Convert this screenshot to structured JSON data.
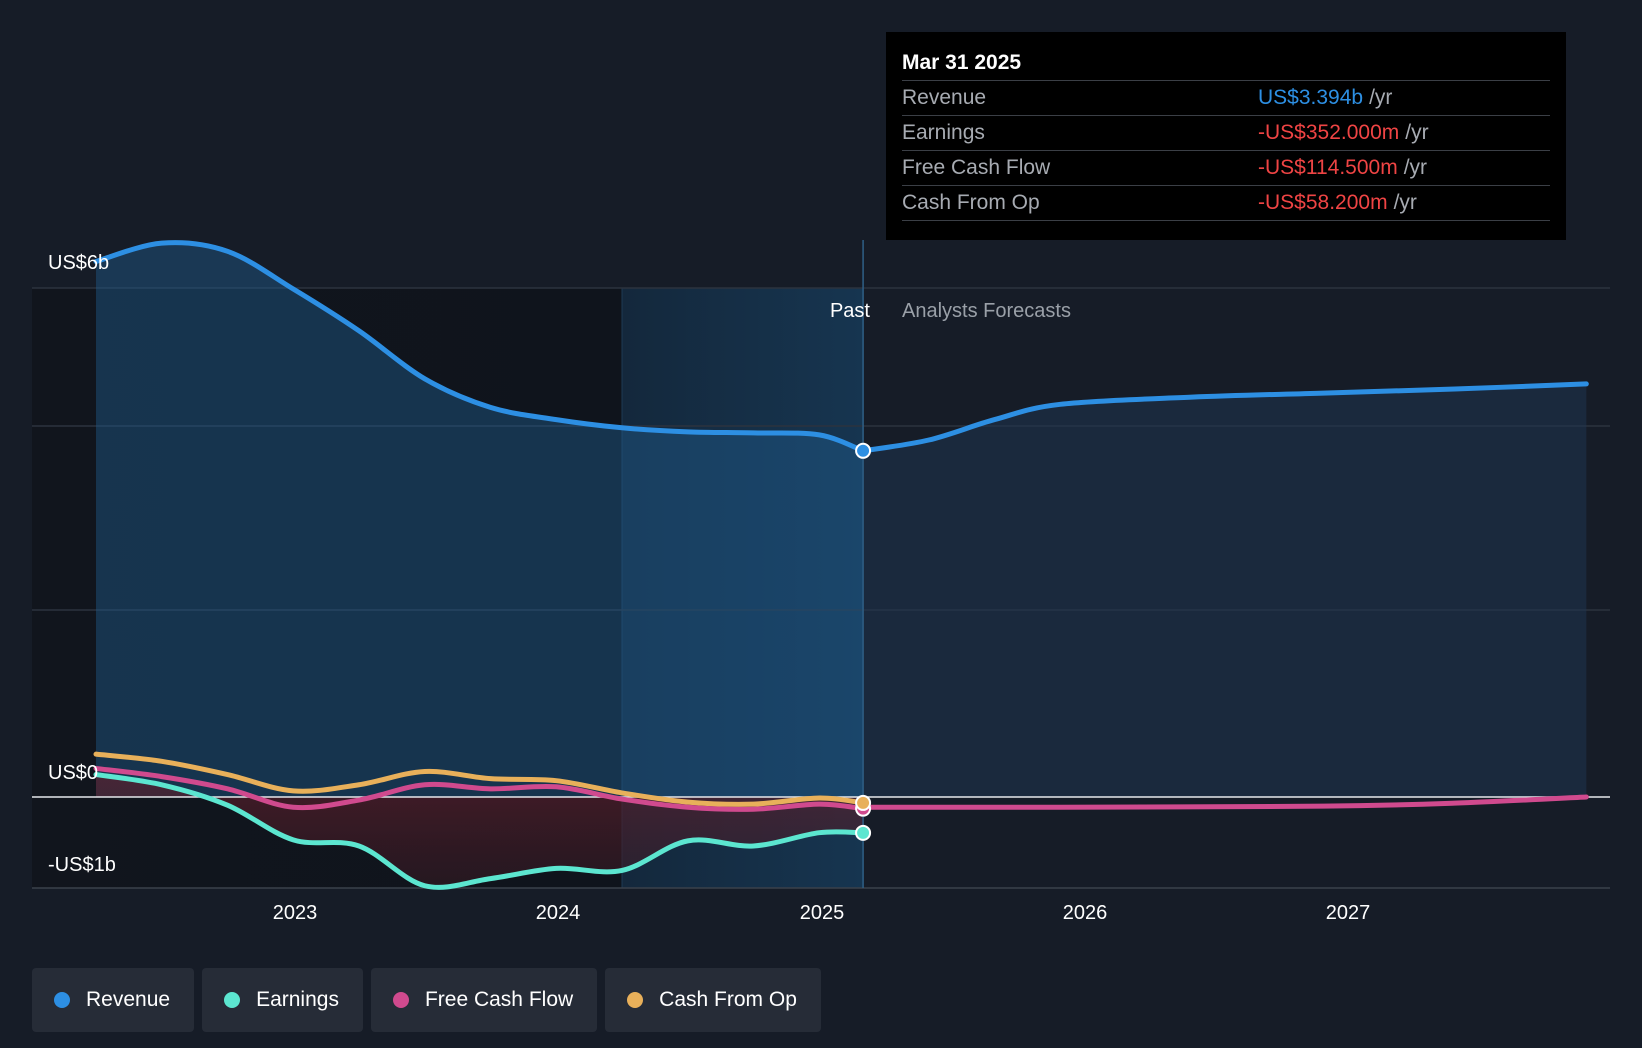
{
  "chart_data": {
    "type": "line",
    "y_axis_labels": [
      "US$6b",
      "US$0",
      "-US$1b"
    ],
    "ylim": [
      -1.0,
      5.5
    ],
    "x_ticks": [
      "2023",
      "2024",
      "2025",
      "2026",
      "2027"
    ],
    "xlim": [
      "2022-04",
      "2027-12"
    ],
    "past_label": "Past",
    "forecast_label": "Analysts Forecasts",
    "series": [
      {
        "name": "Revenue",
        "color": "#2d8fe3",
        "x": [
          "2022-04",
          "2022-07",
          "2022-10",
          "2023-01",
          "2023-04",
          "2023-07",
          "2023-10",
          "2024-01",
          "2024-04",
          "2024-07",
          "2024-10",
          "2025-01",
          "2025-03"
        ],
        "values": [
          5.25,
          5.43,
          5.35,
          4.98,
          4.57,
          4.1,
          3.82,
          3.7,
          3.62,
          3.58,
          3.57,
          3.55,
          3.394
        ]
      },
      {
        "name": "Revenue (forecast)",
        "color": "#2d8fe3",
        "x": [
          "2025-03",
          "2025-06",
          "2025-09",
          "2025-12",
          "2026-06",
          "2026-12",
          "2027-06",
          "2027-12"
        ],
        "values": [
          3.394,
          3.5,
          3.7,
          3.85,
          3.92,
          3.96,
          4.0,
          4.05
        ]
      },
      {
        "name": "Earnings",
        "color": "#5ce6d0",
        "x": [
          "2022-04",
          "2022-07",
          "2022-10",
          "2023-01",
          "2023-04",
          "2023-07",
          "2023-10",
          "2024-01",
          "2024-04",
          "2024-07",
          "2024-10",
          "2025-01",
          "2025-03"
        ],
        "values": [
          0.22,
          0.12,
          -0.08,
          -0.42,
          -0.48,
          -0.87,
          -0.8,
          -0.7,
          -0.72,
          -0.43,
          -0.48,
          -0.35,
          -0.352
        ]
      },
      {
        "name": "Free Cash Flow",
        "color": "#d04a8e",
        "x": [
          "2022-04",
          "2022-07",
          "2022-10",
          "2023-01",
          "2023-04",
          "2023-07",
          "2023-10",
          "2024-01",
          "2024-04",
          "2024-07",
          "2024-10",
          "2025-01",
          "2025-03"
        ],
        "values": [
          0.28,
          0.2,
          0.08,
          -0.1,
          -0.03,
          0.12,
          0.08,
          0.1,
          -0.02,
          -0.1,
          -0.12,
          -0.07,
          -0.1145
        ]
      },
      {
        "name": "Free Cash Flow (forecast)",
        "color": "#d04a8e",
        "x": [
          "2025-03",
          "2025-12",
          "2026-12",
          "2027-06",
          "2027-12"
        ],
        "values": [
          -0.1,
          -0.1,
          -0.09,
          -0.06,
          0.0
        ]
      },
      {
        "name": "Cash From Op",
        "color": "#e8b05a",
        "x": [
          "2022-04",
          "2022-07",
          "2022-10",
          "2023-01",
          "2023-04",
          "2023-07",
          "2023-10",
          "2024-01",
          "2024-04",
          "2024-07",
          "2024-10",
          "2025-01",
          "2025-03"
        ],
        "values": [
          0.42,
          0.35,
          0.22,
          0.06,
          0.12,
          0.25,
          0.18,
          0.16,
          0.04,
          -0.05,
          -0.07,
          -0.01,
          -0.0582
        ]
      }
    ],
    "highlight_date": "2025-03",
    "shaded_band": [
      "2024-04",
      "2025-03"
    ]
  },
  "tooltip": {
    "date": "Mar 31 2025",
    "rows": [
      {
        "name": "Revenue",
        "value": "US$3.394b",
        "unit": "/yr",
        "color": "#2d8fe3"
      },
      {
        "name": "Earnings",
        "value": "-US$352.000m",
        "unit": "/yr",
        "color": "#ef4444"
      },
      {
        "name": "Free Cash Flow",
        "value": "-US$114.500m",
        "unit": "/yr",
        "color": "#ef4444"
      },
      {
        "name": "Cash From Op",
        "value": "-US$58.200m",
        "unit": "/yr",
        "color": "#ef4444"
      }
    ]
  },
  "legend": [
    {
      "label": "Revenue",
      "color": "#2d8fe3"
    },
    {
      "label": "Earnings",
      "color": "#5ce6d0"
    },
    {
      "label": "Free Cash Flow",
      "color": "#d04a8e"
    },
    {
      "label": "Cash From Op",
      "color": "#e8b05a"
    }
  ]
}
